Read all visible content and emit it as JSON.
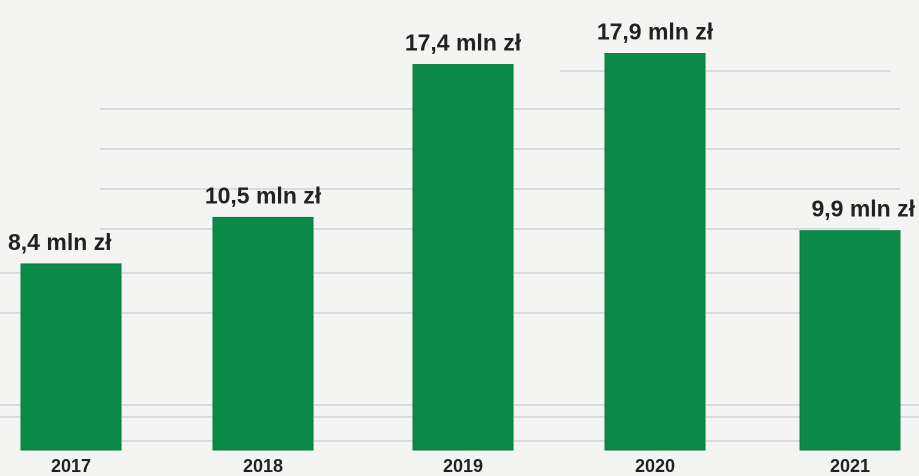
{
  "chart_data": {
    "type": "bar",
    "categories": [
      "2017",
      "2018",
      "2019",
      "2020",
      "2021"
    ],
    "values": [
      8.4,
      10.5,
      17.4,
      17.9,
      9.9
    ],
    "data_labels": [
      "8,4 mln zł",
      "10,5 mln zł",
      "17,4 mln zł",
      "17,9 mln zł",
      "9,9 mln zł"
    ],
    "title": "",
    "xlabel": "",
    "ylabel": "",
    "ylim": [
      0,
      18
    ],
    "grid": false,
    "legend": "none",
    "colors": {
      "bar": "#0b8a48",
      "text": "#222222",
      "background": "#f4f4f2"
    }
  }
}
